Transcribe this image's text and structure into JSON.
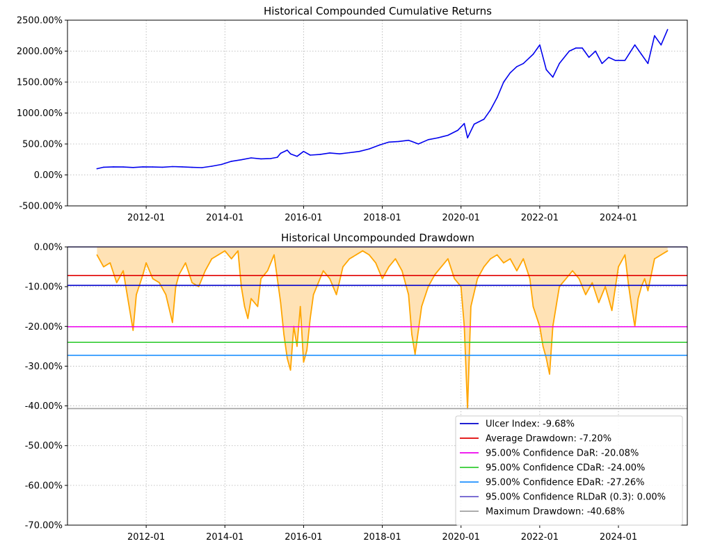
{
  "chart_data": [
    {
      "type": "line",
      "title": "Historical Compounded Cumulative Returns",
      "xlabel": "",
      "ylabel": "",
      "x_range": [
        "2010-01",
        "2025-10"
      ],
      "ylim": [
        -500,
        2500
      ],
      "y_tick_values": [
        -500,
        0,
        500,
        1000,
        1500,
        2000,
        2500
      ],
      "y_tick_labels": [
        "-500.00%",
        "0.00%",
        "500.00%",
        "1000.00%",
        "1500.00%",
        "2000.00%",
        "2500.00%"
      ],
      "x_ticks": [
        "2012-01",
        "2014-01",
        "2016-01",
        "2018-01",
        "2020-01",
        "2022-01",
        "2024-01"
      ],
      "grid": "dotted",
      "colors": {
        "line": "#0000ee"
      },
      "series": [
        {
          "x": [
            "2010-10",
            "2010-12",
            "2011-03",
            "2011-06",
            "2011-09",
            "2011-12",
            "2012-03",
            "2012-06",
            "2012-09",
            "2012-12",
            "2013-03",
            "2013-06",
            "2013-09",
            "2013-12",
            "2014-03",
            "2014-06",
            "2014-09",
            "2014-12",
            "2015-03",
            "2015-05",
            "2015-06",
            "2015-08",
            "2015-09",
            "2015-11",
            "2016-01",
            "2016-03",
            "2016-06",
            "2016-09",
            "2016-12",
            "2017-03",
            "2017-06",
            "2017-09",
            "2017-12",
            "2018-03",
            "2018-06",
            "2018-09",
            "2018-10",
            "2018-12",
            "2019-03",
            "2019-06",
            "2019-09",
            "2019-12",
            "2020-02",
            "2020-03",
            "2020-05",
            "2020-08",
            "2020-10",
            "2020-12",
            "2021-02",
            "2021-04",
            "2021-06",
            "2021-08",
            "2021-10",
            "2021-11",
            "2022-01",
            "2022-03",
            "2022-05",
            "2022-07",
            "2022-10",
            "2022-12",
            "2023-02",
            "2023-04",
            "2023-06",
            "2023-08",
            "2023-10",
            "2023-12",
            "2024-03",
            "2024-06",
            "2024-08",
            "2024-10",
            "2024-12",
            "2025-02",
            "2025-04"
          ],
          "values": [
            100,
            125,
            130,
            128,
            120,
            130,
            128,
            125,
            135,
            130,
            122,
            118,
            140,
            170,
            220,
            245,
            275,
            260,
            265,
            285,
            350,
            400,
            340,
            300,
            380,
            320,
            330,
            355,
            340,
            360,
            380,
            420,
            480,
            530,
            540,
            560,
            540,
            500,
            570,
            600,
            640,
            720,
            830,
            600,
            820,
            900,
            1050,
            1250,
            1500,
            1650,
            1750,
            1800,
            1900,
            1950,
            2100,
            1700,
            1580,
            1800,
            2000,
            2050,
            2050,
            1900,
            2000,
            1800,
            1900,
            1850,
            1850,
            2100,
            1950,
            1800,
            2250,
            2100,
            2350
          ]
        }
      ]
    },
    {
      "type": "area",
      "title": "Historical Uncompounded Drawdown",
      "xlabel": "",
      "ylabel": "",
      "x_range": [
        "2010-01",
        "2025-10"
      ],
      "ylim": [
        -70,
        0
      ],
      "y_tick_values": [
        0,
        -10,
        -20,
        -30,
        -40,
        -50,
        -60,
        -70
      ],
      "y_tick_labels": [
        "0.00%",
        "-10.00%",
        "-20.00%",
        "-30.00%",
        "-40.00%",
        "-50.00%",
        "-60.00%",
        "-70.00%"
      ],
      "x_ticks": [
        "2012-01",
        "2014-01",
        "2016-01",
        "2018-01",
        "2020-01",
        "2022-01",
        "2024-01"
      ],
      "grid": "dotted",
      "legend_position": "lower-right",
      "colors": {
        "drawdown_line": "#ffa500",
        "drawdown_fill": "#ffe2b5"
      },
      "series": [
        {
          "x": [
            "2010-10",
            "2010-12",
            "2011-02",
            "2011-04",
            "2011-06",
            "2011-08",
            "2011-09",
            "2011-10",
            "2011-12",
            "2012-01",
            "2012-03",
            "2012-05",
            "2012-07",
            "2012-09",
            "2012-10",
            "2012-11",
            "2013-01",
            "2013-03",
            "2013-05",
            "2013-07",
            "2013-09",
            "2013-11",
            "2014-01",
            "2014-03",
            "2014-05",
            "2014-06",
            "2014-07",
            "2014-08",
            "2014-09",
            "2014-11",
            "2014-12",
            "2015-02",
            "2015-04",
            "2015-06",
            "2015-07",
            "2015-08",
            "2015-09",
            "2015-10",
            "2015-11",
            "2015-12",
            "2016-01",
            "2016-02",
            "2016-03",
            "2016-04",
            "2016-05",
            "2016-07",
            "2016-09",
            "2016-11",
            "2017-01",
            "2017-03",
            "2017-05",
            "2017-07",
            "2017-09",
            "2017-11",
            "2018-01",
            "2018-03",
            "2018-05",
            "2018-07",
            "2018-09",
            "2018-10",
            "2018-11",
            "2018-12",
            "2019-01",
            "2019-03",
            "2019-05",
            "2019-07",
            "2019-09",
            "2019-11",
            "2020-01",
            "2020-02",
            "2020-03",
            "2020-04",
            "2020-06",
            "2020-08",
            "2020-10",
            "2020-12",
            "2021-02",
            "2021-04",
            "2021-06",
            "2021-08",
            "2021-10",
            "2021-11",
            "2022-01",
            "2022-02",
            "2022-03",
            "2022-04",
            "2022-05",
            "2022-06",
            "2022-07",
            "2022-09",
            "2022-11",
            "2023-01",
            "2023-03",
            "2023-05",
            "2023-07",
            "2023-09",
            "2023-11",
            "2024-01",
            "2024-03",
            "2024-04",
            "2024-05",
            "2024-06",
            "2024-07",
            "2024-08",
            "2024-09",
            "2024-10",
            "2024-12",
            "2025-02",
            "2025-04"
          ],
          "values": [
            -2,
            -5,
            -4,
            -9,
            -6,
            -16,
            -21,
            -12,
            -7,
            -4,
            -8,
            -9,
            -12,
            -19,
            -10,
            -7,
            -4,
            -9,
            -10,
            -6,
            -3,
            -2,
            -1,
            -3,
            -1,
            -10,
            -15,
            -18,
            -13,
            -15,
            -8,
            -6,
            -2,
            -14,
            -22,
            -28,
            -31,
            -20,
            -25,
            -15,
            -29,
            -26,
            -18,
            -12,
            -10,
            -6,
            -8,
            -12,
            -5,
            -3,
            -2,
            -1,
            -2,
            -4,
            -8,
            -5,
            -3,
            -6,
            -12,
            -22,
            -27,
            -21,
            -15,
            -10,
            -7,
            -5,
            -3,
            -8,
            -10,
            -20,
            -40.7,
            -15,
            -8,
            -5,
            -3,
            -2,
            -4,
            -3,
            -6,
            -3,
            -8,
            -15,
            -20,
            -25,
            -28,
            -32,
            -20,
            -15,
            -10,
            -8,
            -6,
            -8,
            -12,
            -9,
            -14,
            -10,
            -16,
            -5,
            -2,
            -9,
            -15,
            -20,
            -13,
            -10,
            -8,
            -11,
            -3,
            -2,
            -1
          ]
        }
      ],
      "risk_lines": [
        {
          "label": "Ulcer Index: -9.68%",
          "value": -9.68,
          "color": "#0000cc"
        },
        {
          "label": "Average Drawdown: -7.20%",
          "value": -7.2,
          "color": "#e00000"
        },
        {
          "label": "95.00% Confidence DaR: -20.08%",
          "value": -20.08,
          "color": "#ee00ee"
        },
        {
          "label": "95.00% Confidence CDaR: -24.00%",
          "value": -24.0,
          "color": "#33cc33"
        },
        {
          "label": "95.00% Confidence EDaR: -27.26%",
          "value": -27.26,
          "color": "#1e90ff"
        },
        {
          "label": "95.00% Confidence RLDaR (0.3): 0.00%",
          "value": 0.0,
          "color": "#6a5acd"
        },
        {
          "label": "Maximum Drawdown: -40.68%",
          "value": -40.68,
          "color": "#a0a0a0"
        }
      ]
    }
  ]
}
